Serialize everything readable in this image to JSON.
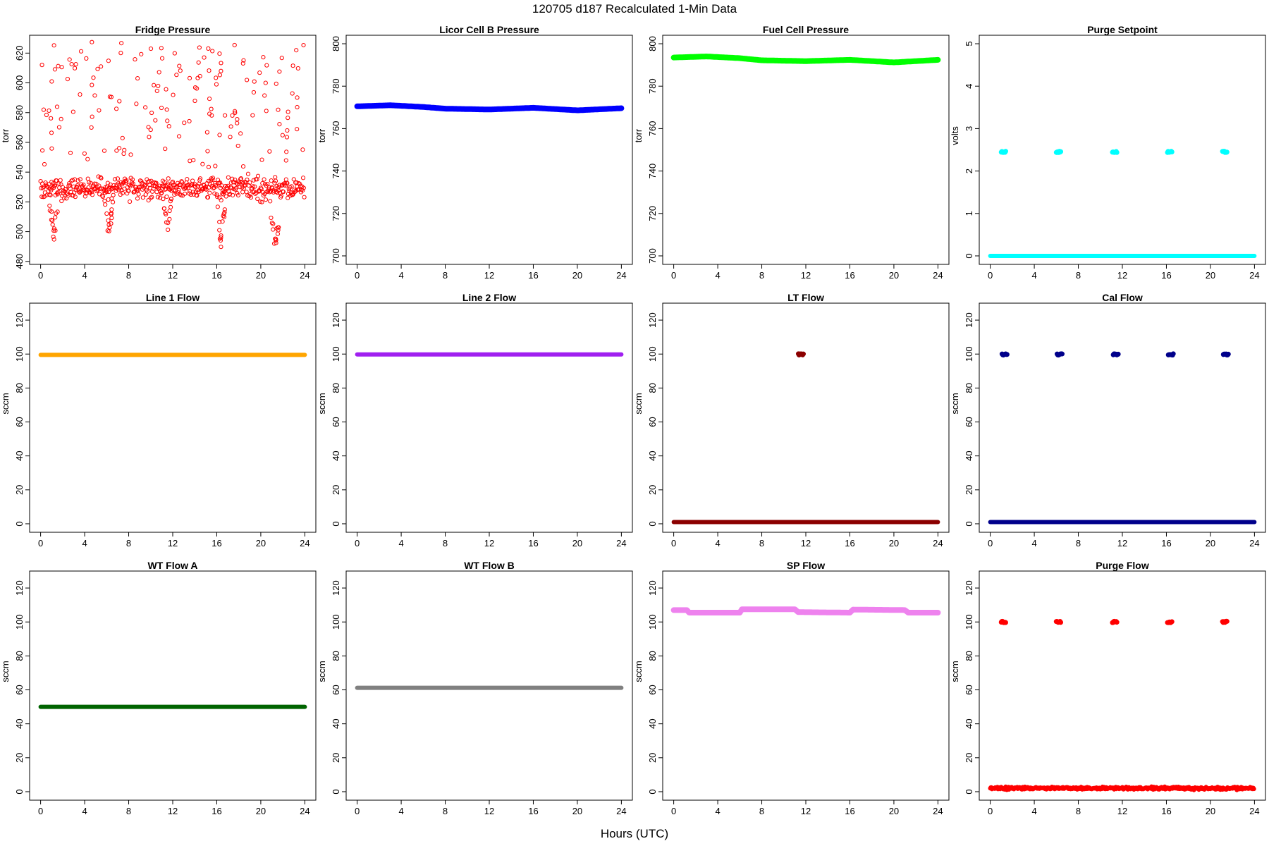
{
  "title": "120705   d187   Recalculated 1-Min Data",
  "xlabel": "Hours (UTC)",
  "chart_data": [
    {
      "type": "scatter",
      "title": "Fridge Pressure",
      "ylabel": "torr",
      "color": "#ff0000",
      "marker": "open",
      "ylim": [
        478,
        632
      ],
      "yticks": [
        480,
        500,
        520,
        540,
        560,
        580,
        600,
        620
      ],
      "xlim": [
        -1,
        25
      ],
      "xticks": [
        0,
        4,
        8,
        12,
        16,
        20,
        24
      ],
      "series": [
        {
          "kind": "noisy",
          "base": 529,
          "noise": 7,
          "step": 0.05
        },
        {
          "kind": "scatter_band",
          "from": 542,
          "to": 628,
          "n": 160,
          "seed": 11
        },
        {
          "kind": "dips",
          "centers": [
            1.2,
            6.2,
            11.5,
            16.4,
            21.3
          ],
          "depth": [
            492,
            493,
            494,
            488,
            483
          ]
        }
      ]
    },
    {
      "type": "line",
      "title": "Licor Cell B Pressure",
      "ylabel": "torr",
      "color": "#0000ff",
      "ylim": [
        696,
        804
      ],
      "yticks": [
        700,
        720,
        740,
        760,
        780,
        800
      ],
      "xlim": [
        -1,
        25
      ],
      "xticks": [
        0,
        4,
        8,
        12,
        16,
        20,
        24
      ],
      "series": [
        {
          "kind": "curve",
          "points": [
            [
              0,
              770.5
            ],
            [
              3,
              771
            ],
            [
              6,
              770.2
            ],
            [
              8,
              769.4
            ],
            [
              12,
              769
            ],
            [
              16,
              769.8
            ],
            [
              20,
              768.6
            ],
            [
              24,
              769.6
            ]
          ]
        }
      ]
    },
    {
      "type": "line",
      "title": "Fuel Cell Pressure",
      "ylabel": "torr",
      "color": "#00ff00",
      "ylim": [
        696,
        804
      ],
      "yticks": [
        700,
        720,
        740,
        760,
        780,
        800
      ],
      "xlim": [
        -1,
        25
      ],
      "xticks": [
        0,
        4,
        8,
        12,
        16,
        20,
        24
      ],
      "series": [
        {
          "kind": "curve",
          "points": [
            [
              0,
              793.5
            ],
            [
              3,
              794
            ],
            [
              6,
              793.2
            ],
            [
              8,
              792.2
            ],
            [
              12,
              791.8
            ],
            [
              16,
              792.4
            ],
            [
              20,
              791.2
            ],
            [
              24,
              792.4
            ]
          ]
        }
      ]
    },
    {
      "type": "scatter",
      "title": "Purge Setpoint",
      "ylabel": "volts",
      "color": "#00ffff",
      "ylim": [
        -0.2,
        5.2
      ],
      "yticks": [
        0,
        1,
        2,
        3,
        4,
        5
      ],
      "xlim": [
        -1,
        25
      ],
      "xticks": [
        0,
        4,
        8,
        12,
        16,
        20,
        24
      ],
      "series": [
        {
          "kind": "flat",
          "value": 0
        },
        {
          "kind": "clusters",
          "centers": [
            1.2,
            6.2,
            11.3,
            16.3,
            21.3
          ],
          "value": 2.45,
          "width": 0.4
        }
      ]
    },
    {
      "type": "line",
      "title": "Line 1 Flow",
      "ylabel": "sccm",
      "color": "#ffa500",
      "ylim": [
        -5,
        130
      ],
      "yticks": [
        0,
        20,
        40,
        60,
        80,
        100,
        120
      ],
      "xlim": [
        -1,
        25
      ],
      "xticks": [
        0,
        4,
        8,
        12,
        16,
        20,
        24
      ],
      "series": [
        {
          "kind": "flat",
          "value": 99.5
        }
      ]
    },
    {
      "type": "line",
      "title": "Line 2 Flow",
      "ylabel": "sccm",
      "color": "#a020f0",
      "ylim": [
        -5,
        130
      ],
      "yticks": [
        0,
        20,
        40,
        60,
        80,
        100,
        120
      ],
      "xlim": [
        -1,
        25
      ],
      "xticks": [
        0,
        4,
        8,
        12,
        16,
        20,
        24
      ],
      "series": [
        {
          "kind": "flat",
          "value": 99.8
        }
      ]
    },
    {
      "type": "scatter",
      "title": "LT Flow",
      "ylabel": "sccm",
      "color": "#8b0000",
      "ylim": [
        -5,
        130
      ],
      "yticks": [
        0,
        20,
        40,
        60,
        80,
        100,
        120
      ],
      "xlim": [
        -1,
        25
      ],
      "xticks": [
        0,
        4,
        8,
        12,
        16,
        20,
        24
      ],
      "series": [
        {
          "kind": "flat",
          "value": 1
        },
        {
          "kind": "clusters",
          "centers": [
            11.55
          ],
          "value": 99.8,
          "width": 0.45
        }
      ]
    },
    {
      "type": "scatter",
      "title": "Cal Flow",
      "ylabel": "sccm",
      "color": "#00008b",
      "ylim": [
        -5,
        130
      ],
      "yticks": [
        0,
        20,
        40,
        60,
        80,
        100,
        120
      ],
      "xlim": [
        -1,
        25
      ],
      "xticks": [
        0,
        4,
        8,
        12,
        16,
        20,
        24
      ],
      "series": [
        {
          "kind": "flat",
          "value": 1
        },
        {
          "kind": "clusters",
          "centers": [
            1.3,
            6.3,
            11.4,
            16.4,
            21.4
          ],
          "value": 99.8,
          "width": 0.45
        }
      ]
    },
    {
      "type": "line",
      "title": "WT Flow A",
      "ylabel": "sccm",
      "color": "#006400",
      "ylim": [
        -5,
        130
      ],
      "yticks": [
        0,
        20,
        40,
        60,
        80,
        100,
        120
      ],
      "xlim": [
        -1,
        25
      ],
      "xticks": [
        0,
        4,
        8,
        12,
        16,
        20,
        24
      ],
      "series": [
        {
          "kind": "flat",
          "value": 50
        }
      ]
    },
    {
      "type": "line",
      "title": "WT Flow B",
      "ylabel": "sccm",
      "color": "#808080",
      "ylim": [
        -5,
        130
      ],
      "yticks": [
        0,
        20,
        40,
        60,
        80,
        100,
        120
      ],
      "xlim": [
        -1,
        25
      ],
      "xticks": [
        0,
        4,
        8,
        12,
        16,
        20,
        24
      ],
      "series": [
        {
          "kind": "flat",
          "value": 61.2
        }
      ]
    },
    {
      "type": "line",
      "title": "SP Flow",
      "ylabel": "sccm",
      "color": "#ee82ee",
      "ylim": [
        -5,
        130
      ],
      "yticks": [
        0,
        20,
        40,
        60,
        80,
        100,
        120
      ],
      "xlim": [
        -1,
        25
      ],
      "xticks": [
        0,
        4,
        8,
        12,
        16,
        20,
        24
      ],
      "series": [
        {
          "kind": "curve",
          "points": [
            [
              0,
              107
            ],
            [
              1.2,
              107
            ],
            [
              1.4,
              105.5
            ],
            [
              6,
              105.5
            ],
            [
              6.2,
              107.5
            ],
            [
              11,
              107.5
            ],
            [
              11.3,
              105.8
            ],
            [
              16,
              105.5
            ],
            [
              16.3,
              107.3
            ],
            [
              21,
              107
            ],
            [
              21.3,
              105.5
            ],
            [
              24,
              105.5
            ]
          ]
        }
      ]
    },
    {
      "type": "scatter",
      "title": "Purge Flow",
      "ylabel": "sccm",
      "color": "#ff0000",
      "ylim": [
        -5,
        130
      ],
      "yticks": [
        0,
        20,
        40,
        60,
        80,
        100,
        120
      ],
      "xlim": [
        -1,
        25
      ],
      "xticks": [
        0,
        4,
        8,
        12,
        16,
        20,
        24
      ],
      "series": [
        {
          "kind": "noisy",
          "base": 2,
          "noise": 0.8,
          "step": 0.05
        },
        {
          "kind": "clusters",
          "centers": [
            1.2,
            6.2,
            11.3,
            16.3,
            21.3
          ],
          "value": 100,
          "width": 0.4
        }
      ]
    }
  ]
}
